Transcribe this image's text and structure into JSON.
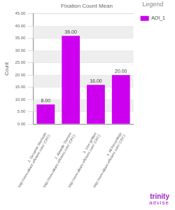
{
  "chart_data": {
    "type": "bar",
    "title": "Fixation Count Mean",
    "categories": [
      "1. Gesamte Startseite http://www.allianz-effizienz.com/ (CRC)",
      "2. Aktuelle Themen http://www.allianz-effizienz.com/ (CRC)",
      "3. Vorn gefiltert http://www.allianz-effizienz.com/ (CRC)",
      "4. All Recordings http://www.allianz-effizienz.com/ (CRC)"
    ],
    "series": [
      {
        "name": "AOI_1",
        "color": "#cc00ee",
        "values": [
          8,
          36,
          16,
          20
        ],
        "value_labels": [
          "8.00",
          "36.00",
          "16.00",
          "20.00"
        ]
      }
    ],
    "y_label": "Count",
    "ylim": [
      0,
      45
    ],
    "yticks": [
      {
        "value": 0,
        "label": "0.00"
      },
      {
        "value": 5,
        "label": "5.00"
      },
      {
        "value": 10,
        "label": "10.00"
      },
      {
        "value": 15,
        "label": "15.00"
      },
      {
        "value": 20,
        "label": "20.00"
      },
      {
        "value": 25,
        "label": "25.00"
      },
      {
        "value": 30,
        "label": "30.00"
      },
      {
        "value": 35,
        "label": "35.00"
      },
      {
        "value": 40,
        "label": "40.00"
      },
      {
        "value": 45,
        "label": "45.00"
      }
    ],
    "grid": true,
    "legend": "top-right",
    "legend_title": "Legend",
    "data_labels": true,
    "annotations": [
      "trinity",
      "advise"
    ]
  }
}
